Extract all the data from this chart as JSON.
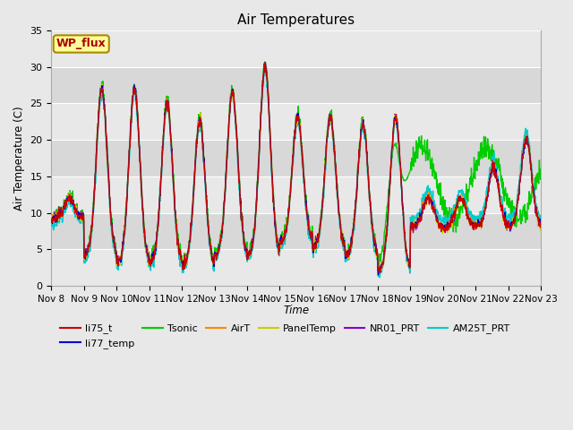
{
  "title": "Air Temperatures",
  "ylabel": "Air Temperature (C)",
  "xlabel": "Time",
  "ylim": [
    0,
    35
  ],
  "xlim": [
    0,
    15
  ],
  "fig_bg": "#e8e8e8",
  "plot_bg_light": "#f0f0f0",
  "plot_bg_dark": "#d8d8d8",
  "series": {
    "li75_t": {
      "color": "#cc0000",
      "lw": 0.9,
      "zorder": 9
    },
    "li77_temp": {
      "color": "#0000cc",
      "lw": 0.9,
      "zorder": 8
    },
    "Tsonic": {
      "color": "#00cc00",
      "lw": 1.0,
      "zorder": 3
    },
    "AirT": {
      "color": "#ff8800",
      "lw": 0.9,
      "zorder": 6
    },
    "PanelTemp": {
      "color": "#cccc00",
      "lw": 0.9,
      "zorder": 7
    },
    "NR01_PRT": {
      "color": "#8800cc",
      "lw": 0.9,
      "zorder": 4
    },
    "AM25T_PRT": {
      "color": "#00cccc",
      "lw": 1.1,
      "zorder": 5
    }
  },
  "xtick_labels": [
    "Nov 8",
    "Nov 9",
    "Nov 10",
    "Nov 11",
    "Nov 12",
    "Nov 13",
    "Nov 14",
    "Nov 15",
    "Nov 16",
    "Nov 17",
    "Nov 18",
    "Nov 19",
    "Nov 20",
    "Nov 21",
    "Nov 22",
    "Nov 23"
  ],
  "ytick_labels": [
    0,
    5,
    10,
    15,
    20,
    25,
    30,
    35
  ],
  "annotation_text": "WP_flux",
  "annotation_color": "#aa0000",
  "annotation_bg": "#ffff99",
  "annotation_border": "#aa8800",
  "grid_color": "#ffffff",
  "band_colors": [
    "#e8e8e8",
    "#d8d8d8"
  ]
}
